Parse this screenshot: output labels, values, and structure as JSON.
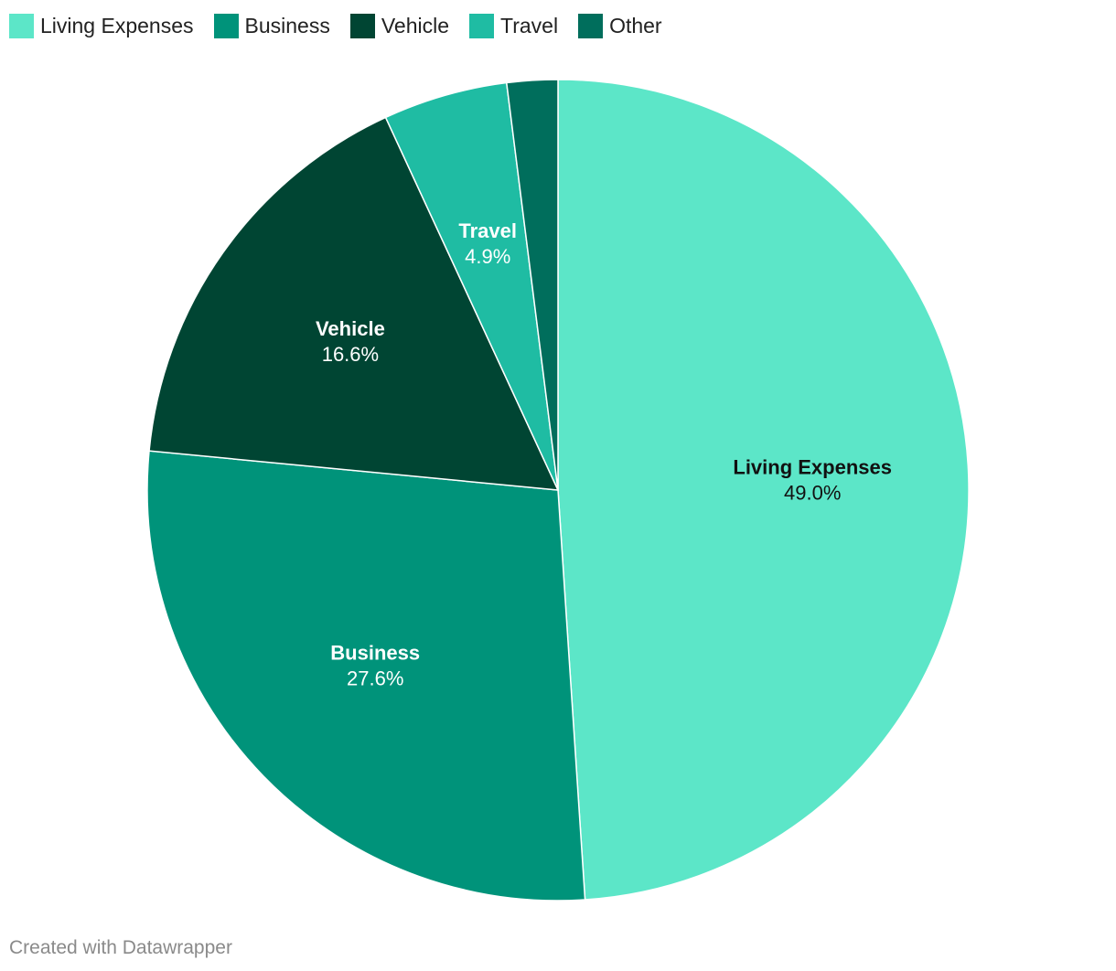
{
  "chart_data": {
    "type": "pie",
    "legend_position": "top-left",
    "slices": [
      {
        "name": "Living Expenses",
        "value": 49.0,
        "label": "49.0%",
        "color": "#5ce6c8",
        "label_color": "#111111",
        "show_label": true
      },
      {
        "name": "Business",
        "value": 27.6,
        "label": "27.6%",
        "color": "#00937a",
        "label_color": "#ffffff",
        "show_label": true
      },
      {
        "name": "Vehicle",
        "value": 16.6,
        "label": "16.6%",
        "color": "#004533",
        "label_color": "#ffffff",
        "show_label": true
      },
      {
        "name": "Travel",
        "value": 4.9,
        "label": "4.9%",
        "color": "#1fbca3",
        "label_color": "#ffffff",
        "show_label": true
      },
      {
        "name": "Other",
        "value": 2.0,
        "label": "2.0%",
        "color": "#006e5c",
        "label_color": "#ffffff",
        "show_label": false
      }
    ]
  },
  "footer": {
    "credit": "Created with Datawrapper"
  }
}
